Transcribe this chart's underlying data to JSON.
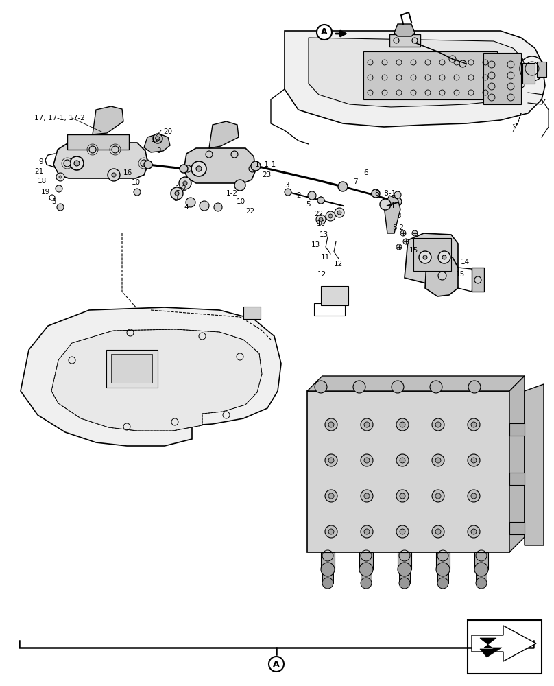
{
  "bg_color": "#ffffff",
  "line_color": "#000000",
  "figsize": [
    8.08,
    10.0
  ],
  "dpi": 100
}
